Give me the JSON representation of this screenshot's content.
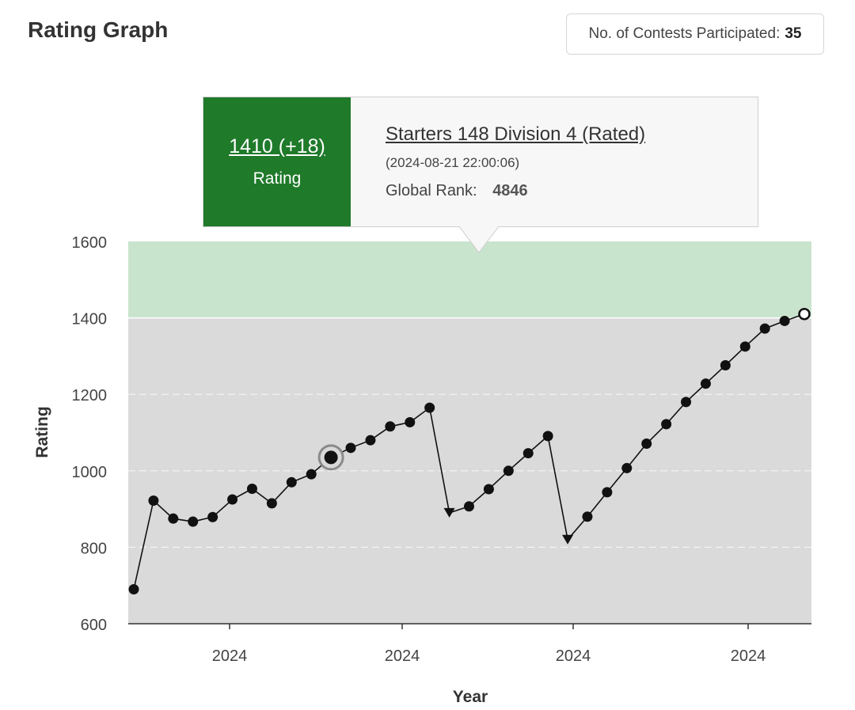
{
  "header": {
    "title": "Rating Graph",
    "contests_label": "No. of Contests Participated:",
    "contests_count": "35"
  },
  "tooltip": {
    "rating": "1410 (+18)",
    "rating_label": "Rating",
    "contest_name": "Starters 148 Division 4 (Rated)",
    "datetime": "(2024-08-21 22:00:06)",
    "global_rank_label": "Global Rank:",
    "global_rank": "4846",
    "accent_color": "#1f7a2a"
  },
  "chart_data": {
    "type": "line",
    "xlabel": "Year",
    "ylabel": "Rating",
    "ylim": [
      600,
      1600
    ],
    "yticks": [
      600,
      800,
      1000,
      1200,
      1400,
      1600
    ],
    "xtick_labels": [
      "2024",
      "2024",
      "2024",
      "2024"
    ],
    "bands": [
      {
        "from": 600,
        "to": 1400,
        "color": "#dadada"
      },
      {
        "from": 1400,
        "to": 1600,
        "color": "#c9e4cd"
      }
    ],
    "grid": true,
    "series": [
      {
        "values": [
          690,
          922,
          875,
          867,
          879,
          925,
          953,
          915,
          970,
          991,
          1035,
          1060,
          1080,
          1116,
          1127,
          1165,
          890,
          907,
          952,
          1000,
          1046,
          1091,
          820,
          880,
          944,
          1007,
          1071,
          1122,
          1180,
          1228,
          1276,
          1325,
          1372,
          1392,
          1410
        ],
        "markers": [
          "dot",
          "dot",
          "dot",
          "dot",
          "dot",
          "dot",
          "dot",
          "dot",
          "dot",
          "dot",
          "highlight",
          "dot",
          "dot",
          "dot",
          "dot",
          "dot",
          "down",
          "dot",
          "dot",
          "dot",
          "dot",
          "dot",
          "down",
          "dot",
          "dot",
          "dot",
          "dot",
          "dot",
          "dot",
          "dot",
          "dot",
          "dot",
          "dot",
          "dot",
          "open"
        ],
        "color": "#111111"
      }
    ]
  }
}
